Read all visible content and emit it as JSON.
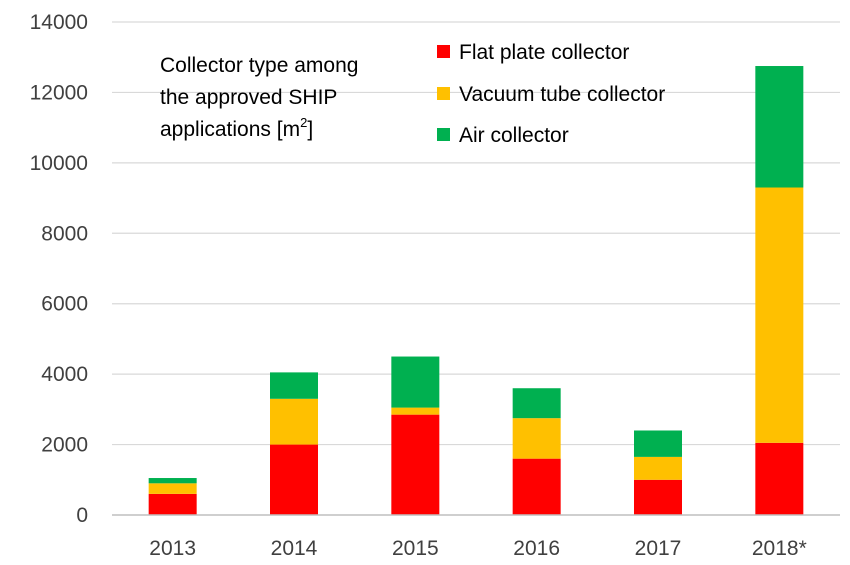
{
  "chart_data": {
    "type": "bar",
    "stacked": true,
    "title_lines": [
      "Collector type among",
      "the approved SHIP",
      "applications [m",
      "2",
      "]"
    ],
    "categories": [
      "2013",
      "2014",
      "2015",
      "2016",
      "2017",
      "2018*"
    ],
    "series": [
      {
        "name": "Flat plate collector",
        "color": "#ff0000",
        "values": [
          600,
          2000,
          2850,
          1600,
          1000,
          2050
        ]
      },
      {
        "name": "Vacuum tube collector",
        "color": "#ffc000",
        "values": [
          300,
          1300,
          200,
          1150,
          650,
          7250
        ]
      },
      {
        "name": "Air collector",
        "color": "#00b050",
        "values": [
          150,
          750,
          1450,
          850,
          750,
          3450
        ]
      }
    ],
    "yticks": [
      "0",
      "2000",
      "4000",
      "6000",
      "8000",
      "10000",
      "12000",
      "14000"
    ],
    "ylim": [
      0,
      14000
    ],
    "grid": true,
    "legend_position": "top"
  }
}
